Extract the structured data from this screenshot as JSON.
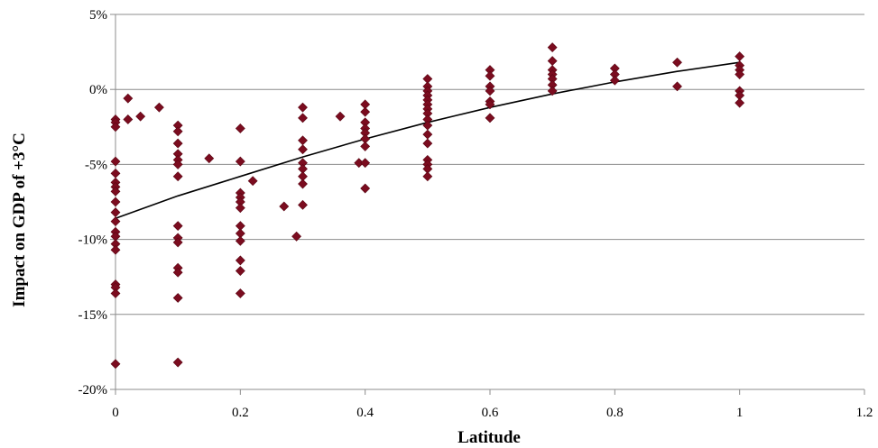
{
  "chart_data": {
    "type": "scatter",
    "title": "",
    "xlabel": "Latitude",
    "ylabel": "Impact on GDP of  +3°C",
    "xlim": [
      0,
      1.2
    ],
    "ylim": [
      -20,
      5
    ],
    "x_ticks": [
      {
        "value": 0,
        "label": "0"
      },
      {
        "value": 0.2,
        "label": "0.2"
      },
      {
        "value": 0.4,
        "label": "0.4"
      },
      {
        "value": 0.6,
        "label": "0.6"
      },
      {
        "value": 0.8,
        "label": "0.8"
      },
      {
        "value": 1,
        "label": "1"
      },
      {
        "value": 1.2,
        "label": "1.2"
      }
    ],
    "y_ticks": [
      {
        "value": 5,
        "label": "5%"
      },
      {
        "value": 0,
        "label": "0%"
      },
      {
        "value": -5,
        "label": "-5%"
      },
      {
        "value": -10,
        "label": "-10%"
      },
      {
        "value": -15,
        "label": "-15%"
      },
      {
        "value": -20,
        "label": "-20%"
      }
    ],
    "grid": "horizontal",
    "marker_color": "#7b0c1f",
    "trendline_color": "#000000",
    "trendline": {
      "type": "polynomial",
      "x": [
        0,
        0.1,
        0.2,
        0.3,
        0.4,
        0.5,
        0.6,
        0.7,
        0.8,
        0.9,
        1.0
      ],
      "y": [
        -8.6,
        -7.1,
        -5.8,
        -4.5,
        -3.3,
        -2.2,
        -1.2,
        -0.3,
        0.5,
        1.2,
        1.8
      ]
    },
    "points": [
      {
        "x": 0,
        "y": -2.0
      },
      {
        "x": 0,
        "y": -2.2
      },
      {
        "x": 0,
        "y": -2.5
      },
      {
        "x": 0,
        "y": -4.8
      },
      {
        "x": 0,
        "y": -5.6
      },
      {
        "x": 0,
        "y": -6.2
      },
      {
        "x": 0,
        "y": -6.5
      },
      {
        "x": 0,
        "y": -6.8
      },
      {
        "x": 0,
        "y": -7.5
      },
      {
        "x": 0,
        "y": -8.2
      },
      {
        "x": 0,
        "y": -8.8
      },
      {
        "x": 0,
        "y": -9.5
      },
      {
        "x": 0,
        "y": -9.8
      },
      {
        "x": 0,
        "y": -10.3
      },
      {
        "x": 0,
        "y": -10.7
      },
      {
        "x": 0,
        "y": -13.0
      },
      {
        "x": 0,
        "y": -13.2
      },
      {
        "x": 0,
        "y": -13.6
      },
      {
        "x": 0,
        "y": -18.3
      },
      {
        "x": 0.02,
        "y": -0.6
      },
      {
        "x": 0.02,
        "y": -2.0
      },
      {
        "x": 0.04,
        "y": -1.8
      },
      {
        "x": 0.07,
        "y": -1.2
      },
      {
        "x": 0.1,
        "y": -2.4
      },
      {
        "x": 0.1,
        "y": -2.8
      },
      {
        "x": 0.1,
        "y": -3.6
      },
      {
        "x": 0.1,
        "y": -4.3
      },
      {
        "x": 0.1,
        "y": -4.7
      },
      {
        "x": 0.1,
        "y": -5.0
      },
      {
        "x": 0.1,
        "y": -5.8
      },
      {
        "x": 0.1,
        "y": -9.1
      },
      {
        "x": 0.1,
        "y": -9.9
      },
      {
        "x": 0.1,
        "y": -10.2
      },
      {
        "x": 0.1,
        "y": -11.9
      },
      {
        "x": 0.1,
        "y": -12.2
      },
      {
        "x": 0.1,
        "y": -13.9
      },
      {
        "x": 0.1,
        "y": -18.2
      },
      {
        "x": 0.15,
        "y": -4.6
      },
      {
        "x": 0.2,
        "y": -2.6
      },
      {
        "x": 0.2,
        "y": -4.8
      },
      {
        "x": 0.2,
        "y": -6.9
      },
      {
        "x": 0.2,
        "y": -7.2
      },
      {
        "x": 0.2,
        "y": -7.5
      },
      {
        "x": 0.2,
        "y": -7.9
      },
      {
        "x": 0.2,
        "y": -9.1
      },
      {
        "x": 0.2,
        "y": -9.6
      },
      {
        "x": 0.2,
        "y": -10.1
      },
      {
        "x": 0.2,
        "y": -11.4
      },
      {
        "x": 0.2,
        "y": -12.1
      },
      {
        "x": 0.2,
        "y": -13.6
      },
      {
        "x": 0.22,
        "y": -6.1
      },
      {
        "x": 0.27,
        "y": -7.8
      },
      {
        "x": 0.29,
        "y": -9.8
      },
      {
        "x": 0.3,
        "y": -1.2
      },
      {
        "x": 0.3,
        "y": -1.9
      },
      {
        "x": 0.3,
        "y": -3.4
      },
      {
        "x": 0.3,
        "y": -4.0
      },
      {
        "x": 0.3,
        "y": -4.9
      },
      {
        "x": 0.3,
        "y": -5.3
      },
      {
        "x": 0.3,
        "y": -5.8
      },
      {
        "x": 0.3,
        "y": -6.3
      },
      {
        "x": 0.3,
        "y": -7.7
      },
      {
        "x": 0.36,
        "y": -1.8
      },
      {
        "x": 0.39,
        "y": -4.9
      },
      {
        "x": 0.4,
        "y": -1.0
      },
      {
        "x": 0.4,
        "y": -1.5
      },
      {
        "x": 0.4,
        "y": -2.2
      },
      {
        "x": 0.4,
        "y": -2.6
      },
      {
        "x": 0.4,
        "y": -2.9
      },
      {
        "x": 0.4,
        "y": -3.3
      },
      {
        "x": 0.4,
        "y": -3.8
      },
      {
        "x": 0.4,
        "y": -4.9
      },
      {
        "x": 0.4,
        "y": -6.6
      },
      {
        "x": 0.5,
        "y": 0.7
      },
      {
        "x": 0.5,
        "y": 0.2
      },
      {
        "x": 0.5,
        "y": -0.1
      },
      {
        "x": 0.5,
        "y": -0.4
      },
      {
        "x": 0.5,
        "y": -0.7
      },
      {
        "x": 0.5,
        "y": -1.0
      },
      {
        "x": 0.5,
        "y": -1.3
      },
      {
        "x": 0.5,
        "y": -1.6
      },
      {
        "x": 0.5,
        "y": -2.0
      },
      {
        "x": 0.5,
        "y": -2.4
      },
      {
        "x": 0.5,
        "y": -3.0
      },
      {
        "x": 0.5,
        "y": -3.6
      },
      {
        "x": 0.5,
        "y": -4.7
      },
      {
        "x": 0.5,
        "y": -5.0
      },
      {
        "x": 0.5,
        "y": -5.3
      },
      {
        "x": 0.5,
        "y": -5.8
      },
      {
        "x": 0.6,
        "y": 1.3
      },
      {
        "x": 0.6,
        "y": 0.9
      },
      {
        "x": 0.6,
        "y": 0.2
      },
      {
        "x": 0.6,
        "y": -0.1
      },
      {
        "x": 0.6,
        "y": -0.8
      },
      {
        "x": 0.6,
        "y": -1.0
      },
      {
        "x": 0.6,
        "y": -1.9
      },
      {
        "x": 0.7,
        "y": 2.8
      },
      {
        "x": 0.7,
        "y": 1.9
      },
      {
        "x": 0.7,
        "y": 1.3
      },
      {
        "x": 0.7,
        "y": 1.0
      },
      {
        "x": 0.7,
        "y": 0.7
      },
      {
        "x": 0.7,
        "y": 0.3
      },
      {
        "x": 0.7,
        "y": -0.1
      },
      {
        "x": 0.8,
        "y": 1.4
      },
      {
        "x": 0.8,
        "y": 1.0
      },
      {
        "x": 0.8,
        "y": 0.6
      },
      {
        "x": 0.9,
        "y": 1.8
      },
      {
        "x": 0.9,
        "y": 0.2
      },
      {
        "x": 1.0,
        "y": 2.2
      },
      {
        "x": 1.0,
        "y": 1.6
      },
      {
        "x": 1.0,
        "y": 1.3
      },
      {
        "x": 1.0,
        "y": 1.0
      },
      {
        "x": 1.0,
        "y": -0.1
      },
      {
        "x": 1.0,
        "y": -0.4
      },
      {
        "x": 1.0,
        "y": -0.9
      }
    ]
  }
}
